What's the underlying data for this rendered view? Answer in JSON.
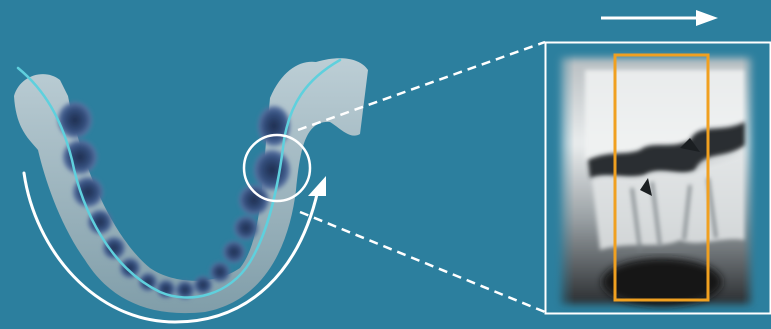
{
  "colors": {
    "background": "#2c7f9e",
    "jaw_bone": "#c9cfd1",
    "tooth_dark": "#2a3d63",
    "tooth_glow": "#6f87b8",
    "focal_trough": "#5fd0dd",
    "arrows": "#ffffff",
    "panel_border": "#ffffff",
    "highlight_box": "#f0a020",
    "xray_dark": "#1c1f22",
    "xray_light": "#d8dcdd"
  },
  "icons": {
    "rotation_arrow": "curved-arrow-icon",
    "scan_direction": "right-arrow-icon",
    "focus_marker": "circle-icon"
  }
}
